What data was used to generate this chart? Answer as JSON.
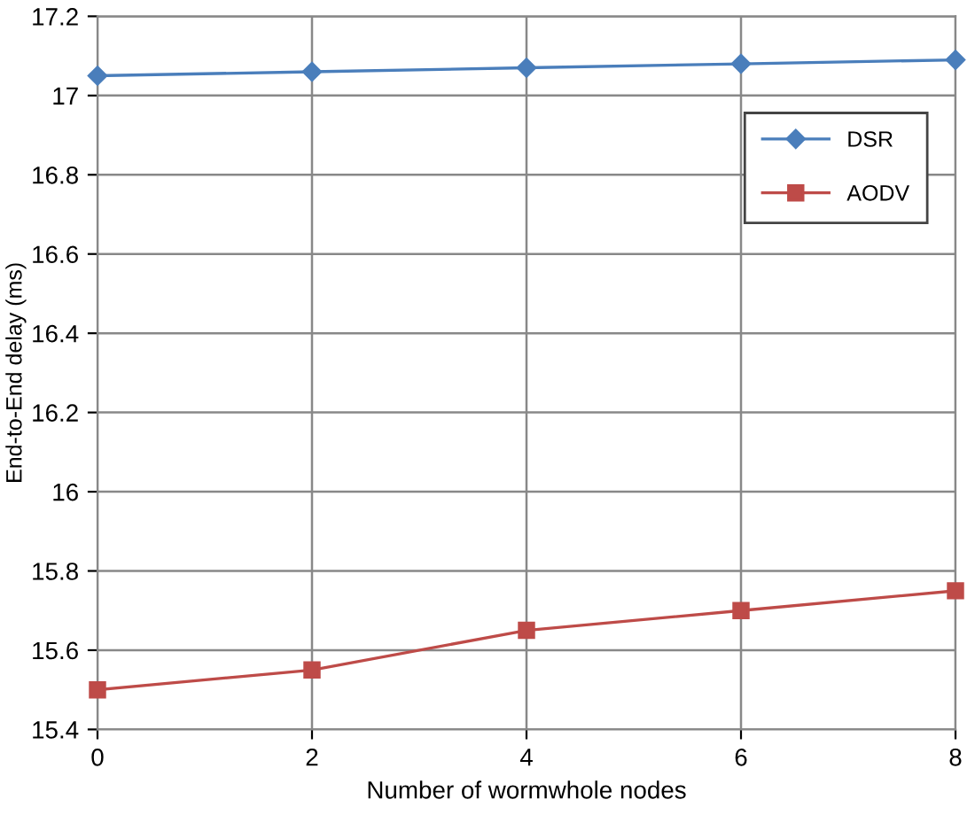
{
  "chart_data": {
    "type": "line",
    "xlabel": "Number of wormwhole nodes",
    "ylabel": "End-to-End delay (ms)",
    "x": [
      0,
      2,
      4,
      6,
      8
    ],
    "series": [
      {
        "name": "DSR",
        "color": "#4a7ebb",
        "marker": "diamond",
        "values": [
          17.05,
          17.06,
          17.07,
          17.08,
          17.09
        ]
      },
      {
        "name": "AODV",
        "color": "#be4b48",
        "marker": "square",
        "values": [
          15.5,
          15.55,
          15.65,
          15.7,
          15.75
        ]
      }
    ],
    "xlim": [
      0,
      8
    ],
    "xticks": [
      0,
      2,
      4,
      6,
      8
    ],
    "ylim": [
      15.4,
      17.2
    ],
    "yticks": [
      15.4,
      15.6,
      15.8,
      16,
      16.2,
      16.4,
      16.6,
      16.8,
      17,
      17.2
    ],
    "grid": true,
    "legend": "top right"
  }
}
